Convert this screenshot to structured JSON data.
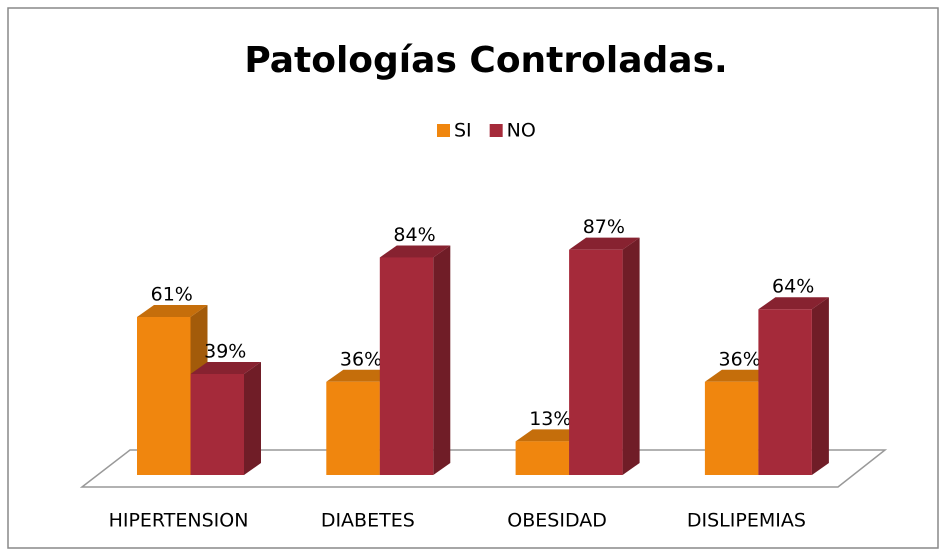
{
  "chart_data": {
    "type": "bar3d",
    "title": "Patologías Controladas.",
    "categories": [
      "HIPERTENSION",
      "DIABETES",
      "OBESIDAD",
      "DISLIPEMIAS"
    ],
    "series": [
      {
        "name": "SI",
        "color": "#f0860e",
        "values": [
          61,
          36,
          13,
          36
        ],
        "value_labels": [
          "61%",
          "36%",
          "13%",
          "36%"
        ]
      },
      {
        "name": "NO",
        "color": "#a52a3a",
        "values": [
          39,
          84,
          87,
          64
        ],
        "value_labels": [
          "39%",
          "84%",
          "87%",
          "64%"
        ]
      }
    ],
    "legend": "top"
  }
}
